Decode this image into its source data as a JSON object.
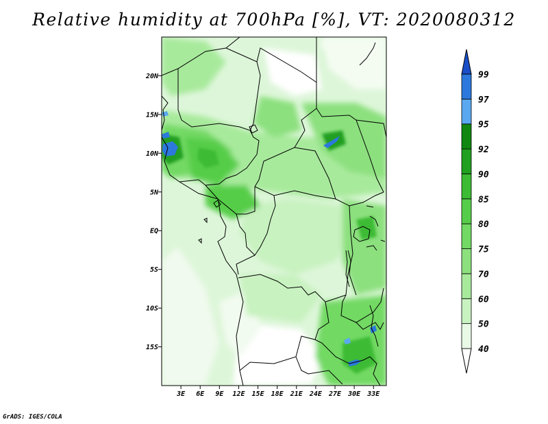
{
  "title": "Relative humidity at 700hPa [%], VT: 2020080312",
  "credit": "GrADS: IGES/COLA",
  "map": {
    "lon_range": [
      0,
      35
    ],
    "lat_range": [
      -20,
      25
    ],
    "lat_ticks": [
      {
        "value": 20,
        "label": "20N"
      },
      {
        "value": 15,
        "label": "15N"
      },
      {
        "value": 10,
        "label": "10N"
      },
      {
        "value": 5,
        "label": "5N"
      },
      {
        "value": 0,
        "label": "EQ"
      },
      {
        "value": -5,
        "label": "5S"
      },
      {
        "value": -10,
        "label": "10S"
      },
      {
        "value": -15,
        "label": "15S"
      }
    ],
    "lon_ticks": [
      {
        "value": 3,
        "label": "3E"
      },
      {
        "value": 6,
        "label": "6E"
      },
      {
        "value": 9,
        "label": "9E"
      },
      {
        "value": 12,
        "label": "12E"
      },
      {
        "value": 15,
        "label": "15E"
      },
      {
        "value": 18,
        "label": "18E"
      },
      {
        "value": 21,
        "label": "21E"
      },
      {
        "value": 24,
        "label": "24E"
      },
      {
        "value": 27,
        "label": "27E"
      },
      {
        "value": 30,
        "label": "30E"
      },
      {
        "value": 33,
        "label": "33E"
      }
    ]
  },
  "colorbar": {
    "levels": [
      40,
      50,
      60,
      70,
      75,
      80,
      85,
      90,
      92,
      95,
      97,
      99
    ],
    "labels": [
      "40",
      "50",
      "60",
      "70",
      "75",
      "80",
      "85",
      "90",
      "92",
      "95",
      "97",
      "99"
    ],
    "colors": [
      "#e8fae6",
      "#c8f2c0",
      "#a8ea9c",
      "#8ce07e",
      "#72d964",
      "#56cd4a",
      "#3cbb34",
      "#209f20",
      "#108710",
      "#5aa8f0",
      "#2c78dc",
      "#1a4ec8"
    ],
    "below_color": "#ffffff"
  },
  "colors": {
    "border": "#000000",
    "background": "#ffffff"
  }
}
